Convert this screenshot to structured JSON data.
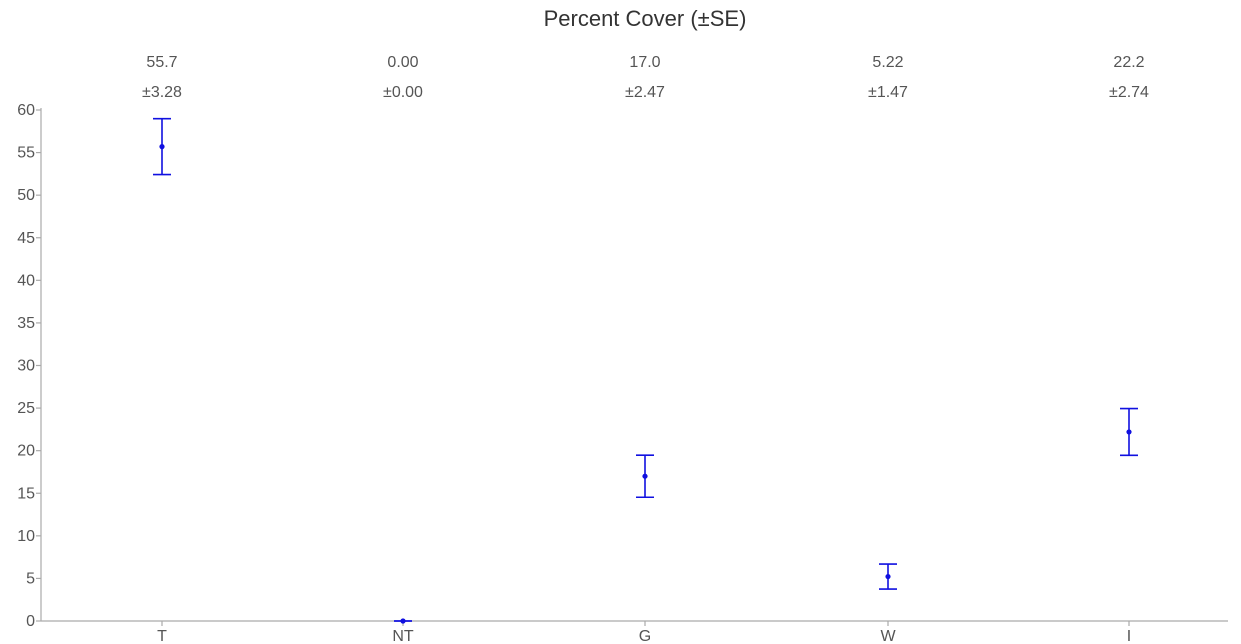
{
  "chart_data": {
    "type": "scatter",
    "title": "Percent Cover (±SE)",
    "xlabel": "",
    "ylabel": "",
    "categories": [
      "T",
      "NT",
      "G",
      "W",
      "I"
    ],
    "means": [
      55.7,
      0.0,
      17.0,
      5.22,
      22.2
    ],
    "se": [
      3.28,
      0.0,
      2.47,
      1.47,
      2.74
    ],
    "mean_labels": [
      "55.7",
      "0.00",
      "17.0",
      "5.22",
      "22.2"
    ],
    "se_labels": [
      "±3.28",
      "±0.00",
      "±2.47",
      "±1.47",
      "±2.74"
    ],
    "ylim": [
      0,
      60
    ],
    "yticks": [
      0,
      5,
      10,
      15,
      20,
      25,
      30,
      35,
      40,
      45,
      50,
      55,
      60
    ],
    "grid": false,
    "marker_color": "#1010e0",
    "axis_color": "#aaaaaa"
  }
}
